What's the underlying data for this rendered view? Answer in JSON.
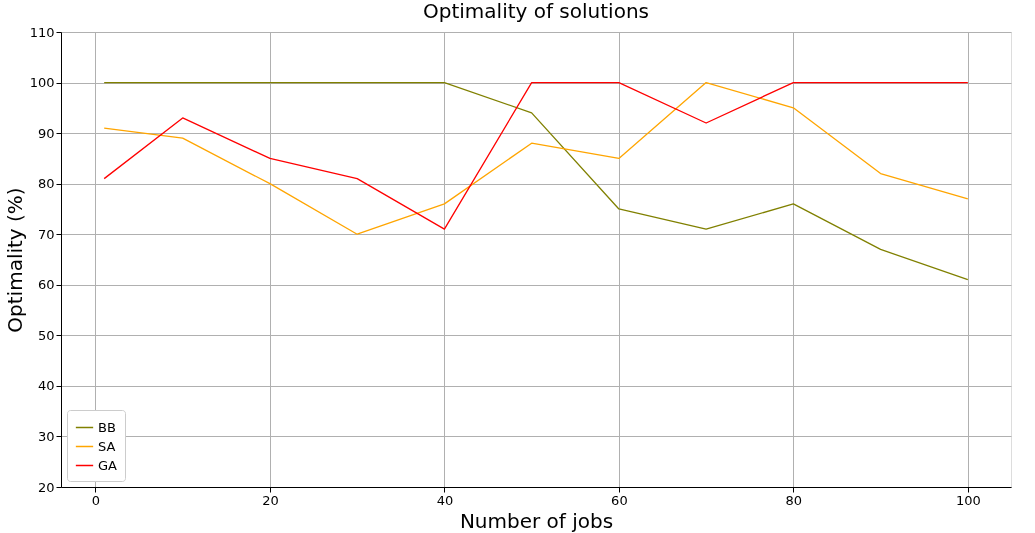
{
  "chart_data": {
    "type": "line",
    "title": "Optimality of solutions",
    "xlabel": "Number of jobs",
    "ylabel": "Optimality (%)",
    "x": [
      1,
      10,
      20,
      30,
      40,
      50,
      60,
      70,
      80,
      90,
      100
    ],
    "series": [
      {
        "name": "BB",
        "color": "#808000",
        "values": [
          100,
          100,
          100,
          100,
          100,
          94,
          75,
          71,
          76,
          67,
          61
        ]
      },
      {
        "name": "SA",
        "color": "#ffa500",
        "values": [
          91,
          89,
          80,
          70,
          76,
          88,
          85,
          100,
          95,
          82,
          77
        ]
      },
      {
        "name": "GA",
        "color": "#ff0000",
        "values": [
          81,
          93,
          85,
          81,
          71,
          100,
          100,
          92,
          100,
          100,
          100
        ]
      }
    ],
    "xlim": [
      -3.95,
      104.95
    ],
    "xticks": [
      0,
      20,
      40,
      60,
      80,
      100
    ],
    "ylim": [
      20,
      110
    ],
    "yticks": [
      20,
      30,
      40,
      50,
      60,
      70,
      80,
      90,
      100,
      110
    ],
    "grid": true,
    "legend": "bottom left",
    "marker": "none",
    "line_style": "solid"
  }
}
